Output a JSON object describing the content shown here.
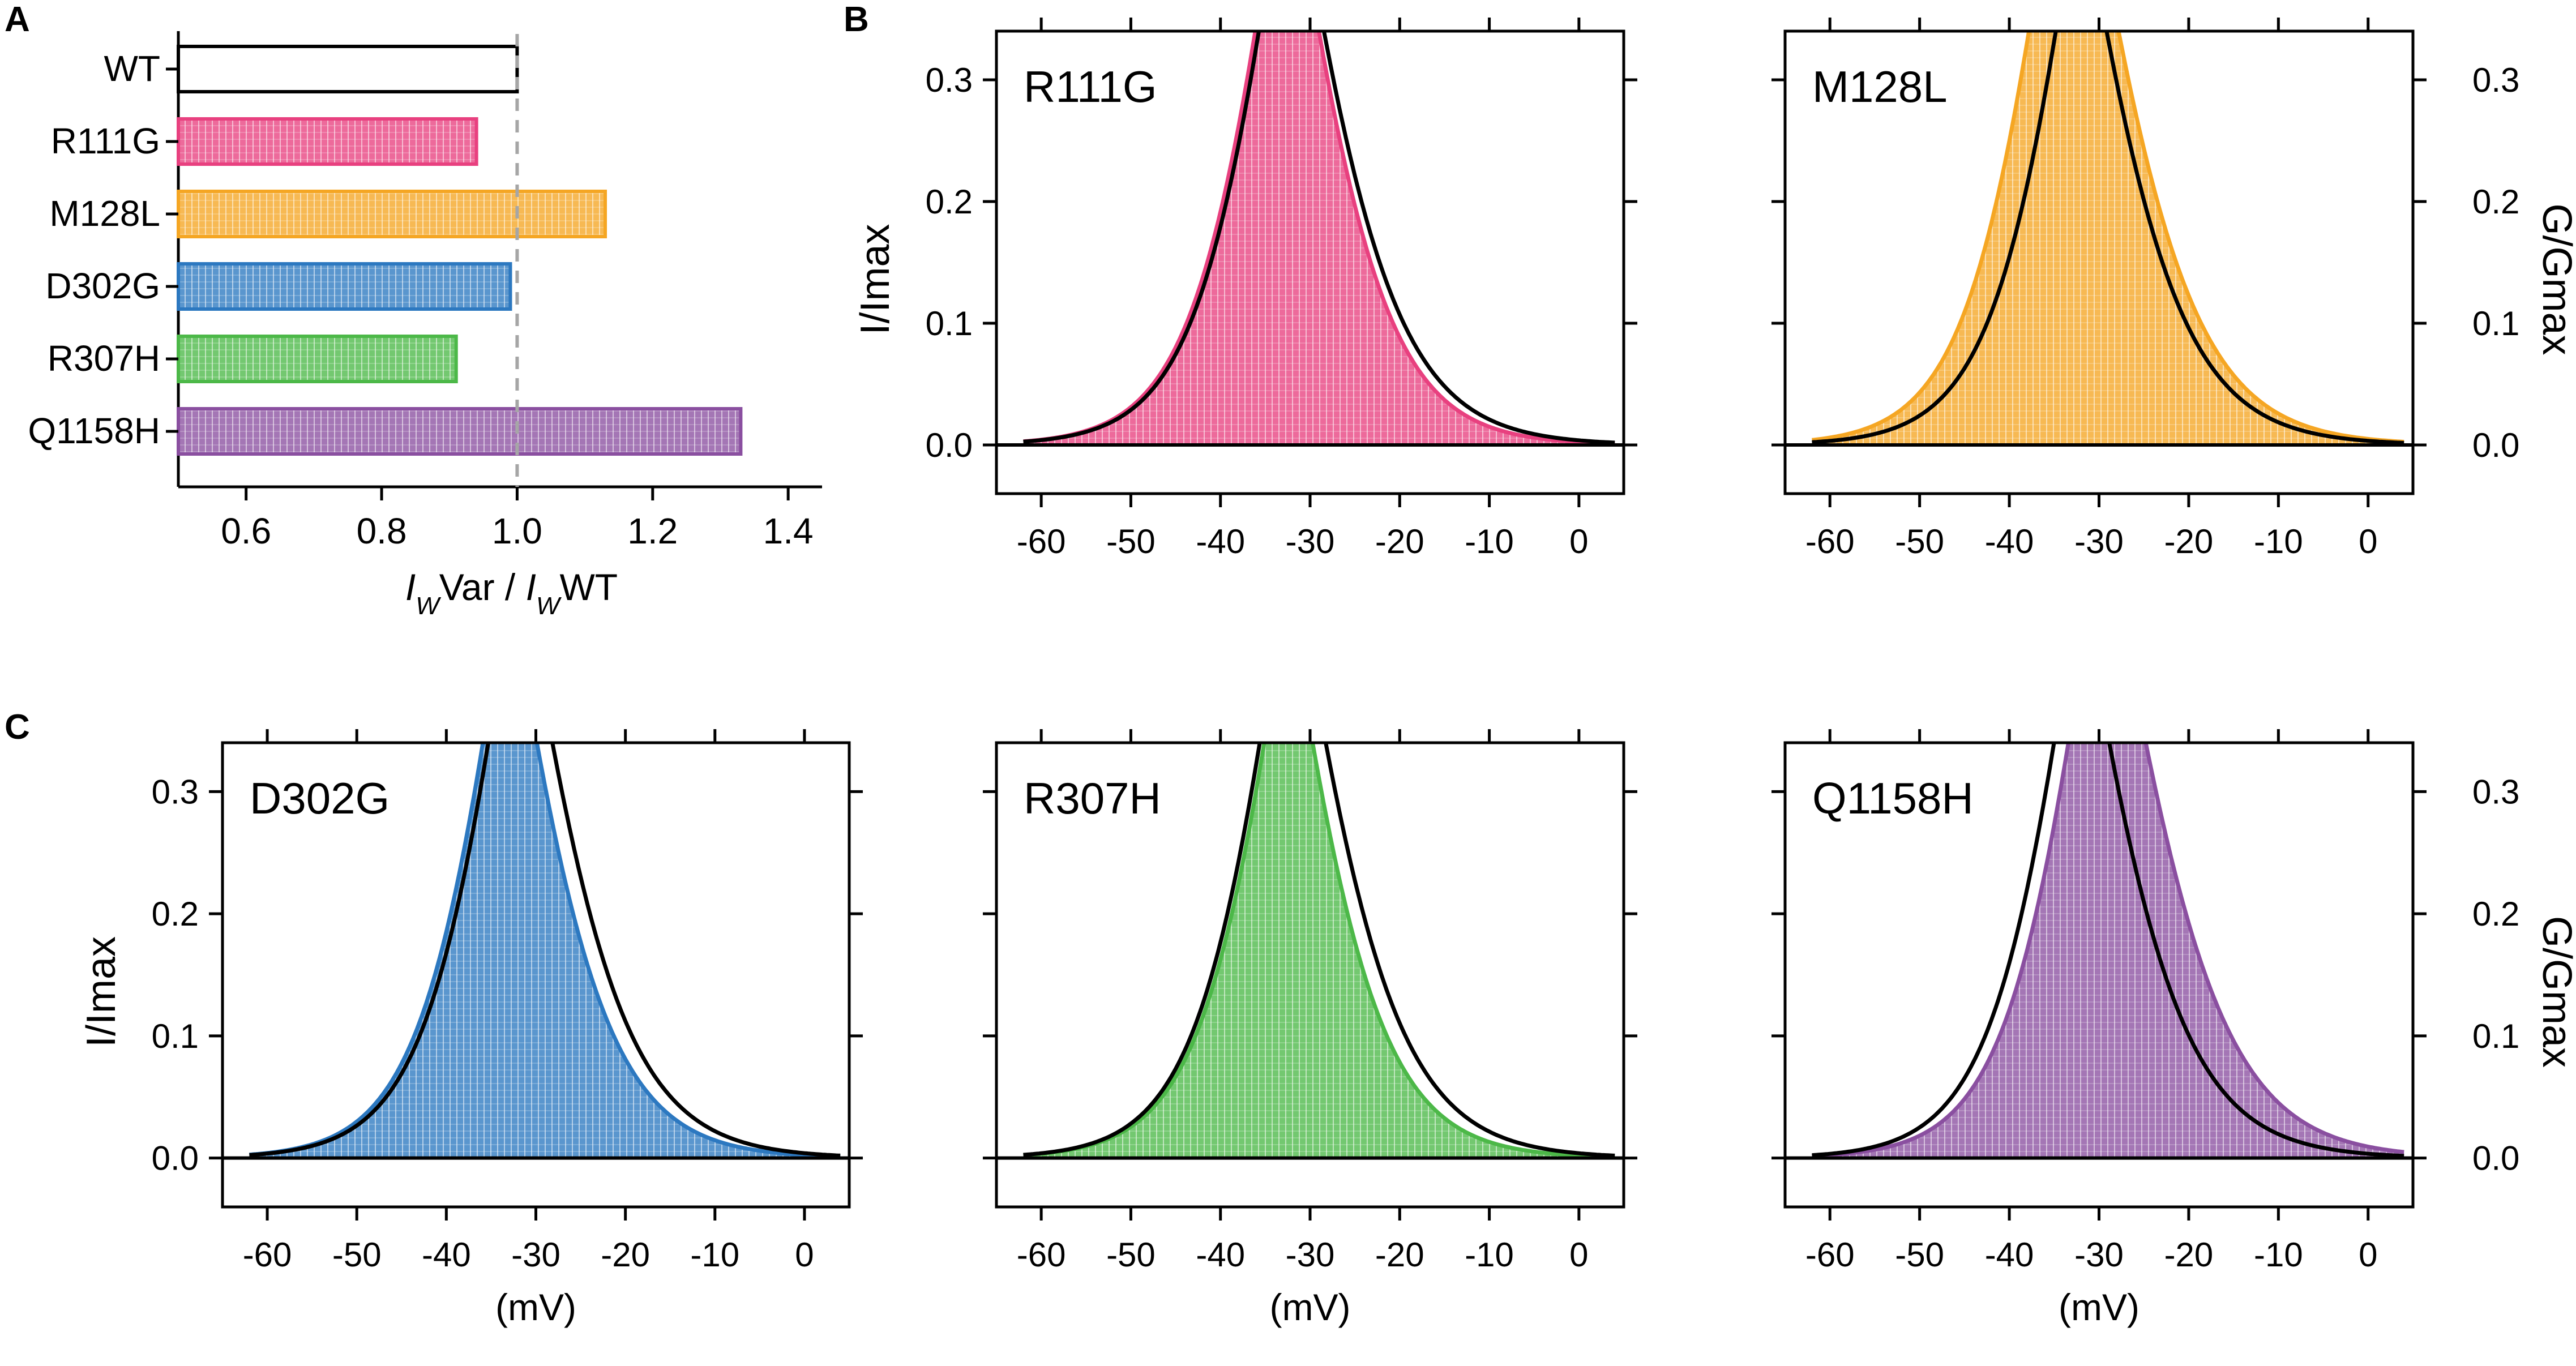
{
  "panel_letters": [
    "A",
    "B",
    "C"
  ],
  "colors": {
    "WT": "#ffffff",
    "R111G": "#e8407f",
    "M128L": "#f5a623",
    "D302G": "#2c78c0",
    "R307H": "#4cb848",
    "Q1158H": "#8a4fa0"
  },
  "chart_data": [
    {
      "panel": "A",
      "type": "bar",
      "orientation": "horizontal",
      "categories": [
        "WT",
        "R111G",
        "M128L",
        "D302G",
        "R307H",
        "Q1158H"
      ],
      "values": [
        1.0,
        0.94,
        1.13,
        0.99,
        0.91,
        1.33
      ],
      "xlim": [
        0.5,
        1.45
      ],
      "xticks": [
        "0.6",
        "0.8",
        "1.0",
        "1.2",
        "1.4"
      ],
      "reference_line": 1.0,
      "xlabel_parts": [
        "I",
        "W",
        "Var / ",
        "I",
        "W",
        "WT"
      ]
    },
    {
      "panel": "B",
      "type": "line",
      "name": "R111G",
      "color_key": "R111G",
      "xlim": [
        -65,
        5
      ],
      "ylim": [
        -0.04,
        0.34
      ],
      "xticks": [
        "-60",
        "-50",
        "-40",
        "-30",
        "-20",
        "-10",
        "0"
      ],
      "yticks": [
        "0.0",
        "0.1",
        "0.2",
        "0.3"
      ],
      "ylabel_left": "I/Imax",
      "ylabel_right": "",
      "xlabel": "",
      "wt_curves": {
        "act_v50": -32.4,
        "act_k": 5.0,
        "inact_v50": -32.3,
        "inact_k": 5.8
      },
      "var_curves": {
        "act_v50": -32.8,
        "act_k": 5.0,
        "inact_v50": -32.6,
        "inact_k": 5.4
      }
    },
    {
      "panel": "B",
      "type": "line",
      "name": "M128L",
      "color_key": "M128L",
      "xlim": [
        -65,
        5
      ],
      "ylim": [
        -0.04,
        0.34
      ],
      "xticks": [
        "-60",
        "-50",
        "-40",
        "-30",
        "-20",
        "-10",
        "0"
      ],
      "yticks": [
        "0.0",
        "0.1",
        "0.2",
        "0.3"
      ],
      "ylabel_left": "",
      "ylabel_right": "G/Gmax",
      "xlabel": "",
      "wt_curves": {
        "act_v50": -31.5,
        "act_k": 5.0,
        "inact_v50": -33.0,
        "inact_k": 5.8
      },
      "var_curves": {
        "act_v50": -34.5,
        "act_k": 5.0,
        "inact_v50": -31.8,
        "inact_k": 6.0
      }
    },
    {
      "panel": "C",
      "type": "line",
      "name": "D302G",
      "color_key": "D302G",
      "xlim": [
        -65,
        5
      ],
      "ylim": [
        -0.04,
        0.34
      ],
      "xticks": [
        "-60",
        "-50",
        "-40",
        "-30",
        "-20",
        "-10",
        "0"
      ],
      "yticks": [
        "0.0",
        "0.1",
        "0.2",
        "0.3"
      ],
      "ylabel_left": "I/Imax",
      "ylabel_right": "",
      "xlabel": "(mV)",
      "wt_curves": {
        "act_v50": -32.0,
        "act_k": 5.0,
        "inact_v50": -32.0,
        "inact_k": 5.8
      },
      "var_curves": {
        "act_v50": -32.6,
        "act_k": 5.0,
        "inact_v50": -33.6,
        "inact_k": 5.6
      }
    },
    {
      "panel": "C",
      "type": "line",
      "name": "R307H",
      "color_key": "R307H",
      "xlim": [
        -65,
        5
      ],
      "ylim": [
        -0.04,
        0.34
      ],
      "xticks": [
        "-60",
        "-50",
        "-40",
        "-30",
        "-20",
        "-10",
        "0"
      ],
      "yticks": [
        "0.0",
        "0.1",
        "0.2",
        "0.3"
      ],
      "ylabel_left": "",
      "ylabel_right": "",
      "xlabel": "(mV)",
      "wt_curves": {
        "act_v50": -32.3,
        "act_k": 5.0,
        "inact_v50": -32.1,
        "inact_k": 5.8
      },
      "var_curves": {
        "act_v50": -31.8,
        "act_k": 5.0,
        "inact_v50": -33.3,
        "inact_k": 5.4
      }
    },
    {
      "panel": "C",
      "type": "line",
      "name": "Q1158H",
      "color_key": "Q1158H",
      "xlim": [
        -65,
        5
      ],
      "ylim": [
        -0.04,
        0.34
      ],
      "xticks": [
        "-60",
        "-50",
        "-40",
        "-30",
        "-20",
        "-10",
        "0"
      ],
      "yticks": [
        "0.0",
        "0.1",
        "0.2",
        "0.3"
      ],
      "ylabel_left": "",
      "ylabel_right": "G/Gmax",
      "xlabel": "(mV)",
      "wt_curves": {
        "act_v50": -31.7,
        "act_k": 5.0,
        "inact_v50": -32.7,
        "inact_k": 5.8
      },
      "var_curves": {
        "act_v50": -30.1,
        "act_k": 5.0,
        "inact_v50": -28.9,
        "inact_k": 6.2
      }
    }
  ]
}
